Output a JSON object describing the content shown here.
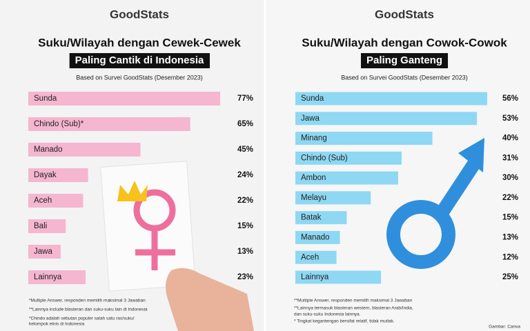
{
  "chart_data": [
    {
      "type": "bar",
      "logo": "GoodStats",
      "title": "Suku/Wilayah dengan Cewek-Cewek",
      "subtitle": "Paling Cantik di Indonesia",
      "source": "Based on Survei GoodStats (Desember 2023)",
      "categories": [
        "Sunda",
        "Chindo (Sub)*",
        "Manado",
        "Dayak",
        "Aceh",
        "Bali",
        "Jawa",
        "Lainnya"
      ],
      "values": [
        77,
        65,
        45,
        24,
        22,
        15,
        13,
        23
      ],
      "value_labels": [
        "77%",
        "65%",
        "45%",
        "24%",
        "22%",
        "15%",
        "13%",
        "23%"
      ],
      "color": "#f5b6cf",
      "notes": [
        "*Multiple Answer, responden memilih maksimal 3 Jawaban",
        "**Lainnya include blasteran dan suku-suku lain di Indonesia",
        "*Chindo adalah sebutan populer salah satu ras/suku/",
        "kelompok etnis di Indonesia"
      ]
    },
    {
      "type": "bar",
      "logo": "GoodStats",
      "title": "Suku/Wilayah dengan Cowok-Cowok",
      "subtitle": "Paling Ganteng",
      "source": "Based on Survei GoodStats (Desember 2023)",
      "categories": [
        "Sunda",
        "Jawa",
        "Minang",
        "Chindo (Sub)",
        "Ambon",
        "Melayu",
        "Batak",
        "Manado",
        "Aceh",
        "Lainnya"
      ],
      "values": [
        56,
        53,
        40,
        31,
        30,
        22,
        15,
        13,
        12,
        25
      ],
      "value_labels": [
        "56%",
        "53%",
        "40%",
        "31%",
        "30%",
        "22%",
        "15%",
        "13%",
        "12%",
        "25%"
      ],
      "color": "#8ed8f3",
      "notes": [
        "**Multiple Answer, responden memilih maksimal 3 Jawaban",
        "**Lainnya termasuk blasteran western, blasteran Arab/India,",
        "dan suku-suku Indonesia lainnya.",
        "* Tingkat kegantengan bersifat relatif, tidak mutlak."
      ],
      "credit": "Gambar: Canva"
    }
  ]
}
